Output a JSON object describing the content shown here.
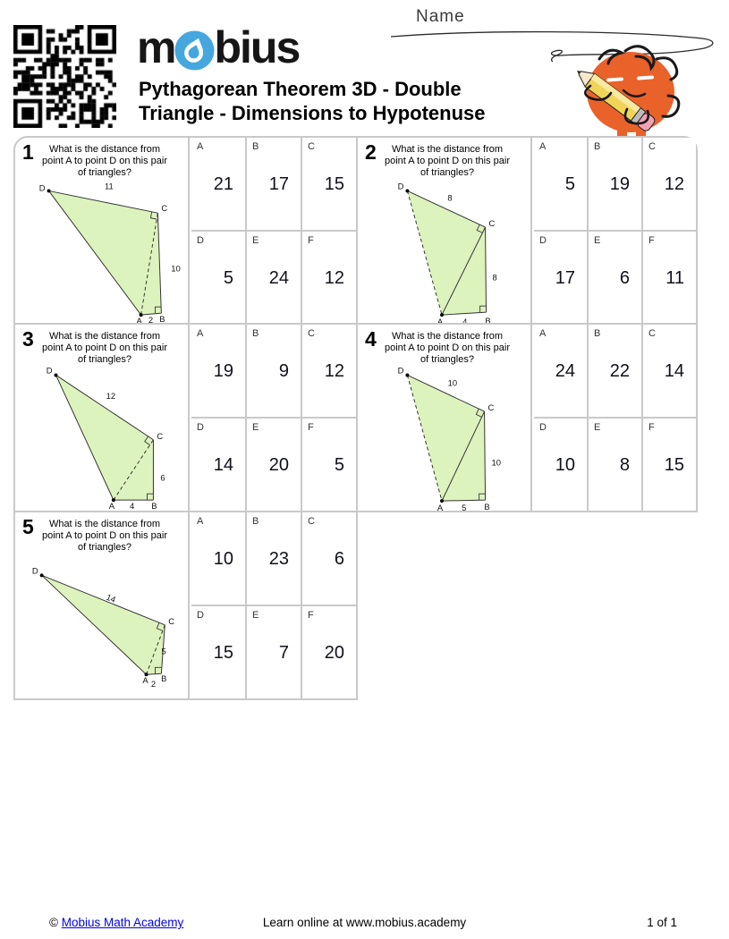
{
  "header": {
    "logo_pre": "m",
    "logo_post": "bius",
    "title_line1": "Pythagorean Theorem 3D - Double",
    "title_line2": "Triangle - Dimensions to Hypotenuse",
    "name_label": "Name"
  },
  "question": "What is the distance from point A to point D on this pair of triangles?",
  "letters": [
    "A",
    "B",
    "C",
    "D",
    "E",
    "F"
  ],
  "problems": [
    {
      "number": "1",
      "answers": [
        "21",
        "17",
        "15",
        "5",
        "24",
        "12"
      ],
      "labels": {
        "A": "A",
        "B": "B",
        "C": "C",
        "D": "D"
      },
      "edges": {
        "dc": "11",
        "cb": "10",
        "ab": "2"
      }
    },
    {
      "number": "2",
      "answers": [
        "5",
        "19",
        "12",
        "17",
        "6",
        "11"
      ],
      "labels": {
        "A": "A",
        "B": "B",
        "C": "C",
        "D": "D"
      },
      "edges": {
        "dc": "8",
        "cb": "8",
        "ab": "4"
      }
    },
    {
      "number": "3",
      "answers": [
        "19",
        "9",
        "12",
        "14",
        "20",
        "5"
      ],
      "labels": {
        "A": "A",
        "B": "B",
        "C": "C",
        "D": "D"
      },
      "edges": {
        "dc": "12",
        "cb": "6",
        "ab": "4"
      }
    },
    {
      "number": "4",
      "answers": [
        "24",
        "22",
        "14",
        "10",
        "8",
        "15"
      ],
      "labels": {
        "A": "A",
        "B": "B",
        "C": "C",
        "D": "D"
      },
      "edges": {
        "dc": "10",
        "cb": "10",
        "ab": "5"
      }
    },
    {
      "number": "5",
      "answers": [
        "10",
        "23",
        "6",
        "15",
        "7",
        "20"
      ],
      "labels": {
        "A": "A",
        "B": "B",
        "C": "C",
        "D": "D"
      },
      "edges": {
        "dc": "14",
        "cb": "5",
        "ab": "2"
      }
    }
  ],
  "footer": {
    "copyright": "©",
    "link_label": "Mobius Math Academy",
    "center_text": "Learn online at www.mobius.academy",
    "page_info": "1 of 1"
  },
  "colors": {
    "triangle_fill": "#ddf3bd",
    "grid_border": "#c9c9c9",
    "link_blue": "#0000ee",
    "logo_blue": "#45a7de",
    "mascot_orange": "#e8622a",
    "pencil_yellow": "#f0d457",
    "eraser_pink": "#f2a0b5"
  }
}
